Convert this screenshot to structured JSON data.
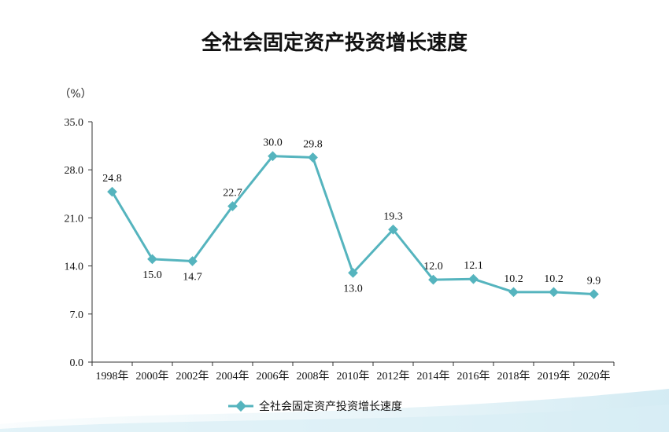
{
  "chart_data": {
    "type": "line",
    "title": "全社会固定资产投资增长速度",
    "unit": "（%）",
    "categories": [
      "1998年",
      "2000年",
      "2002年",
      "2004年",
      "2006年",
      "2008年",
      "2010年",
      "2012年",
      "2014年",
      "2016年",
      "2018年",
      "2019年",
      "2020年"
    ],
    "ylim": [
      0,
      35
    ],
    "yticks": [
      "0.0",
      "7.0",
      "14.0",
      "21.0",
      "28.0",
      "35.0"
    ],
    "series": [
      {
        "name": "全社会固定资产投资增长速度",
        "values": [
          24.8,
          15.0,
          14.7,
          22.7,
          30.0,
          29.8,
          13.0,
          19.3,
          12.0,
          12.1,
          10.2,
          10.2,
          9.9
        ],
        "labels": [
          "24.8",
          "15.0",
          "14.7",
          "22.7",
          "30.0",
          "29.8",
          "13.0",
          "19.3",
          "12.0",
          "12.1",
          "10.2",
          "10.2",
          "9.9"
        ],
        "color": "#55b4be"
      }
    ],
    "grid": false,
    "legend": "bottom-center"
  }
}
